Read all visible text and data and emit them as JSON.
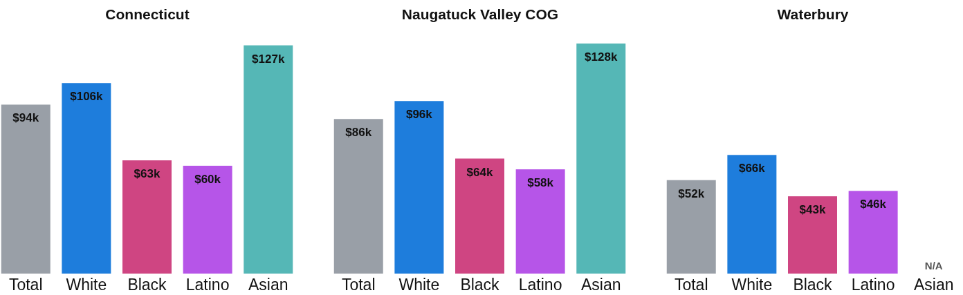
{
  "chart_data": [
    {
      "type": "bar",
      "title": "Connecticut",
      "categories": [
        "Total",
        "White",
        "Black",
        "Latino",
        "Asian"
      ],
      "values": [
        94,
        106,
        63,
        60,
        127
      ],
      "value_labels": [
        "$94k",
        "$106k",
        "$63k",
        "$60k",
        "$127k"
      ],
      "colors": [
        "#999fa7",
        "#1e7ddc",
        "#cf4582",
        "#b655e8",
        "#55b7b6"
      ]
    },
    {
      "type": "bar",
      "title": "Naugatuck Valley COG",
      "categories": [
        "Total",
        "White",
        "Black",
        "Latino",
        "Asian"
      ],
      "values": [
        86,
        96,
        64,
        58,
        128
      ],
      "value_labels": [
        "$86k",
        "$96k",
        "$64k",
        "$58k",
        "$128k"
      ],
      "colors": [
        "#999fa7",
        "#1e7ddc",
        "#cf4582",
        "#b655e8",
        "#55b7b6"
      ]
    },
    {
      "type": "bar",
      "title": "Waterbury",
      "categories": [
        "Total",
        "White",
        "Black",
        "Latino",
        "Asian"
      ],
      "values": [
        52,
        66,
        43,
        46,
        null
      ],
      "value_labels": [
        "$52k",
        "$66k",
        "$43k",
        "$46k",
        "N/A"
      ],
      "colors": [
        "#999fa7",
        "#1e7ddc",
        "#cf4582",
        "#b655e8",
        null
      ]
    }
  ]
}
